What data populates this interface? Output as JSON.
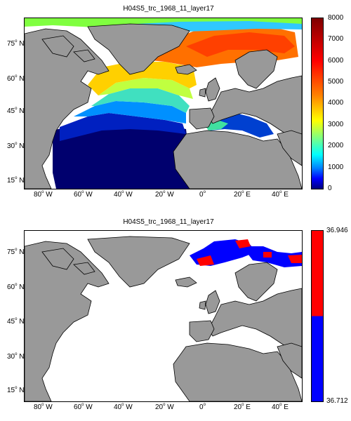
{
  "panels": [
    {
      "title": "H04S5_trc_1968_11_layer17",
      "x_ticks": [
        "80",
        "60",
        "40",
        "20",
        "0",
        "20",
        "40"
      ],
      "x_suffix": [
        "W",
        "W",
        "W",
        "W",
        "",
        "E",
        "E"
      ],
      "y_ticks": [
        "75",
        "60",
        "45",
        "30",
        "15"
      ],
      "y_suffix": "N",
      "colorbar_ticks": [
        "8000",
        "7000",
        "6000",
        "5000",
        "4000",
        "3000",
        "2000",
        "1000",
        "0"
      ],
      "colorbar_colors": [
        "#7f0000",
        "#ff0000",
        "#ff8000",
        "#ffff00",
        "#80ff80",
        "#00ffff",
        "#0080ff",
        "#0000ff",
        "#00007f"
      ]
    },
    {
      "title": "H04S5_trc_1968_11_layer17",
      "x_ticks": [
        "80",
        "60",
        "40",
        "20",
        "0",
        "20",
        "40"
      ],
      "x_suffix": [
        "W",
        "W",
        "W",
        "W",
        "",
        "E",
        "E"
      ],
      "y_ticks": [
        "75",
        "60",
        "45",
        "30",
        "15"
      ],
      "y_suffix": "N",
      "colorbar_ticks": [
        "36.946",
        "36.712"
      ],
      "colorbar_colors": [
        "#ff0000",
        "#0000ff"
      ]
    }
  ],
  "colors": {
    "land": "#999999",
    "coast": "#000000",
    "no_data": "#ffffff"
  }
}
